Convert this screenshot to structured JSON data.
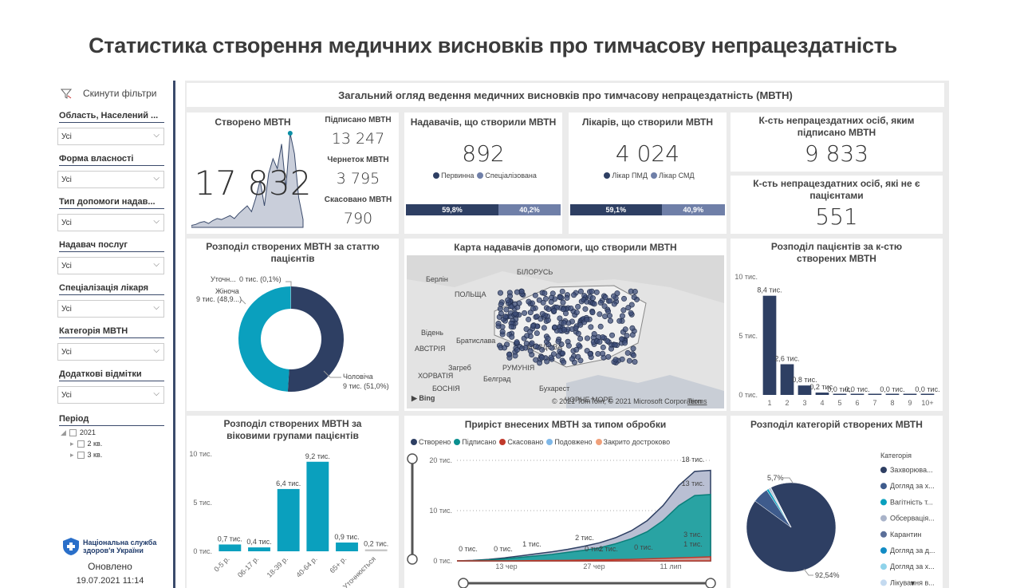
{
  "page_title": "Статистика створення медичних висновків про тимчасову непрацездатність",
  "sidebar": {
    "reset_label": "Скинути фільтри",
    "filters": [
      {
        "label": "Область, Населений ...",
        "value": "Усі"
      },
      {
        "label": "Форма власності",
        "value": "Усі"
      },
      {
        "label": "Тип допомоги надав...",
        "value": "Усі"
      },
      {
        "label": "Надавач послуг",
        "value": "Усі"
      },
      {
        "label": "Спеціалізація лікаря",
        "value": "Усі"
      },
      {
        "label": "Категорія МВТН",
        "value": "Усі"
      },
      {
        "label": "Додаткові відмітки",
        "value": "Усі"
      }
    ],
    "period_label": "Період",
    "period_tree": [
      "2021",
      "2 кв.",
      "3 кв."
    ],
    "logo_text": "Національна служба здоров'я України",
    "updated_label": "Оновлено",
    "updated_value": "19.07.2021 11:14"
  },
  "header_banner": "Загальний огляд ведення медичних висновків про тимчасову непрацездатність (МВТН)",
  "kpi_created": {
    "title": "Створено МВТН",
    "value": "17 832"
  },
  "kpi_side": [
    {
      "label": "Підписано МВТН",
      "value": "13 247"
    },
    {
      "label": "Чернеток МВТН",
      "value": "3 795"
    },
    {
      "label": "Скасовано МВТН",
      "value": "790"
    }
  ],
  "providers": {
    "title": "Надавачів, що створили МВТН",
    "value": "892",
    "legend": [
      "Первинна",
      "Спеціалізована"
    ],
    "split": [
      59.8,
      40.2
    ],
    "split_labels": [
      "59,8%",
      "40,2%"
    ]
  },
  "doctors": {
    "title": "Лікарів, що створили МВТН",
    "value": "4 024",
    "legend": [
      "Лікар ПМД",
      "Лікар СМД"
    ],
    "split": [
      59.1,
      40.9
    ],
    "split_labels": [
      "59,1%",
      "40,9%"
    ]
  },
  "kpi_signed_persons": {
    "title": "К-сть непрацездатних осіб, яким підписано МВТН",
    "value": "9 833"
  },
  "kpi_non_patients": {
    "title": "К-сть непрацездатних осіб, які не є пацієнтами",
    "value": "551"
  },
  "colors": {
    "navy": "#2e3f63",
    "teal": "#0aa0be",
    "slate": "#6f7fa8",
    "grey": "#cfcfcf"
  },
  "map": {
    "title": "Карта надавачів допомоги, що створили МВТН",
    "labels": [
      "Берлін",
      "ПОЛЬЩА",
      "БІЛОРУСЬ",
      "Відень",
      "Братислава",
      "АВСТРІЯ",
      "Загреб",
      "Белград",
      "РУМУНІЯ",
      "МОЛДОВА",
      "Бухарест",
      "ХОРВАТІЯ",
      "ЧОРНЕ МОРЕ",
      "БОСНІЯ"
    ],
    "copyright": "© 2021 TomTom, © 2021 Microsoft Corporation",
    "terms": "Terms",
    "bing": "Bing"
  },
  "chart_data": [
    {
      "type": "area",
      "title": "",
      "note": "daily created sparkline (unlabeled)",
      "values": [
        2,
        3,
        5,
        6,
        4,
        7,
        9,
        8,
        10,
        12,
        9,
        14,
        18,
        22,
        16,
        30,
        48,
        22,
        55,
        70,
        60,
        85,
        40,
        96,
        75,
        30,
        8
      ]
    },
    {
      "type": "pie",
      "title": "Розподіл створених МВТН за статтю пацієнтів",
      "slices": [
        {
          "name": "Чоловіча",
          "value": 9,
          "label": "9 тис. (51,0%)",
          "pct": 51.0
        },
        {
          "name": "Жіноча",
          "value": 9,
          "label": "9 тис. (48,9...)",
          "pct": 48.9
        },
        {
          "name": "Уточн...",
          "value": 0,
          "label": "0 тис. (0,1%)",
          "pct": 0.1
        }
      ]
    },
    {
      "type": "bar",
      "title": "Розподіл пацієнтів за к-стю створених МВТН",
      "categories": [
        "1",
        "2",
        "3",
        "4",
        "5",
        "6",
        "7",
        "8",
        "9",
        "10+"
      ],
      "values": [
        8.4,
        2.6,
        0.8,
        0.2,
        0.0,
        0.0,
        0.0,
        0.0,
        0.0,
        0.0
      ],
      "data_labels": [
        "8,4 тис.",
        "2,6 тис.",
        "0,8 тис.",
        "0,2 тис.",
        "0,0 тис.",
        "0,0 тис.",
        "",
        "0,0 тис.",
        "",
        "0,0 тис."
      ],
      "yticks": [
        "10 тис.",
        "5 тис.",
        "0 тис."
      ],
      "ylim": [
        0,
        10
      ]
    },
    {
      "type": "bar",
      "title": "Розподіл створених МВТН за віковими групами пацієнтів",
      "categories": [
        "0-5 р.",
        "06-17 р.",
        "18-39 р.",
        "40-64 р.",
        "65+ р.",
        "Уточнюється"
      ],
      "values": [
        0.7,
        0.4,
        6.4,
        9.2,
        0.9,
        0.2
      ],
      "data_labels": [
        "0,7 тис.",
        "0,4 тис.",
        "6,4 тис.",
        "9,2 тис.",
        "0,9 тис.",
        "0,2 тис."
      ],
      "yticks": [
        "10 тис.",
        "5 тис.",
        "0 тис."
      ],
      "ylim": [
        0,
        10
      ]
    },
    {
      "type": "area",
      "title": "Приріст внесених МВТН за типом обробки",
      "legend": [
        "Створено",
        "Підписано",
        "Скасовано",
        "Подовжено",
        "Закрито достроково"
      ],
      "xticks": [
        "13 чер",
        "27 чер",
        "11 лип"
      ],
      "yticks": [
        "20 тис.",
        "10 тис.",
        "0 тис."
      ],
      "ylim": [
        0,
        20
      ],
      "series": [
        {
          "name": "Створено",
          "values": [
            0,
            0.1,
            0.3,
            0.6,
            1.0,
            1.4,
            1.8,
            2.3,
            2.9,
            3.6,
            4.6,
            6.0,
            8.0,
            11.0,
            15.0,
            17.8,
            18.0
          ]
        },
        {
          "name": "Підписано",
          "values": [
            0,
            0.05,
            0.2,
            0.4,
            0.7,
            1.0,
            1.3,
            1.7,
            2.1,
            2.6,
            3.4,
            4.4,
            5.8,
            8.0,
            11.0,
            13.0,
            13.2
          ]
        },
        {
          "name": "Скасовано",
          "values": [
            0,
            0,
            0,
            0,
            0.02,
            0.05,
            0.08,
            0.1,
            0.15,
            0.2,
            0.25,
            0.3,
            0.4,
            0.5,
            0.6,
            0.7,
            0.8
          ]
        }
      ],
      "data_labels": [
        "0 тис.",
        "0 тис.",
        "1 тис.",
        "2 тис.",
        "0 тис.",
        "2 тис.",
        "0 тис.",
        "18 тис.",
        "13 тис.",
        "3 тис.",
        "1 тис."
      ]
    },
    {
      "type": "pie",
      "title": "Розподіл категорій створених МВТН",
      "legend_title": "Категорія",
      "slices": [
        {
          "name": "Захворюва...",
          "pct": 92.54,
          "label": "92,54%"
        },
        {
          "name": "Догляд за х...",
          "pct": 5.7,
          "label": "5,7%"
        },
        {
          "name": "Вагітність т...",
          "pct": 0.8
        },
        {
          "name": "Обсервація...",
          "pct": 0.4
        },
        {
          "name": "Карантин",
          "pct": 0.3
        },
        {
          "name": "Догляд за д...",
          "pct": 0.2
        },
        {
          "name": "Догляд за х...",
          "pct": 0.05
        },
        {
          "name": "Лікування в...",
          "pct": 0.01
        }
      ]
    }
  ]
}
